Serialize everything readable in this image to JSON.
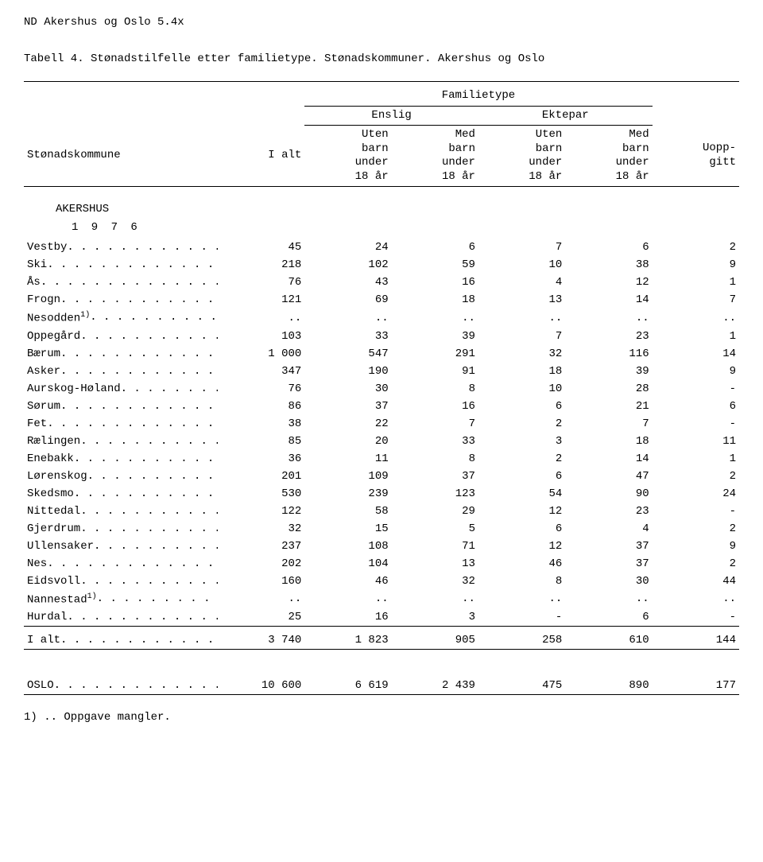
{
  "header_line": "ND  Akershus og Oslo  5.4x",
  "table_title": "Tabell 4.  Stønadstilfelle etter familietype.  Stønadskommuner.  Akershus og Oslo",
  "col_headers": {
    "stub": "Stønadskommune",
    "ialt": "I alt",
    "famtype": "Familietype",
    "enslig": "Enslig",
    "ektepar": "Ektepar",
    "uten": "Uten\nbarn\nunder\n18 år",
    "med": "Med\nbarn\nunder\n18 år",
    "uopp": "Uopp-\ngitt"
  },
  "section": "AKERSHUS",
  "year": "1 9 7 6",
  "rows": [
    {
      "label": "Vestby",
      "v": [
        "45",
        "24",
        "6",
        "7",
        "6",
        "2"
      ]
    },
    {
      "label": "Ski",
      "v": [
        "218",
        "102",
        "59",
        "10",
        "38",
        "9"
      ]
    },
    {
      "label": "Ås",
      "v": [
        "76",
        "43",
        "16",
        "4",
        "12",
        "1"
      ]
    },
    {
      "label": "Frogn",
      "v": [
        "121",
        "69",
        "18",
        "13",
        "14",
        "7"
      ]
    },
    {
      "label": "Nesodden",
      "sup": "1)",
      "v": [
        "..",
        "..",
        "..",
        "..",
        "..",
        ".."
      ]
    },
    {
      "label": "Oppegård",
      "v": [
        "103",
        "33",
        "39",
        "7",
        "23",
        "1"
      ]
    },
    {
      "label": "Bærum",
      "v": [
        "1 000",
        "547",
        "291",
        "32",
        "116",
        "14"
      ]
    },
    {
      "label": "Asker",
      "v": [
        "347",
        "190",
        "91",
        "18",
        "39",
        "9"
      ]
    },
    {
      "label": "Aurskog-Høland",
      "v": [
        "76",
        "30",
        "8",
        "10",
        "28",
        "-"
      ]
    },
    {
      "label": "Sørum",
      "v": [
        "86",
        "37",
        "16",
        "6",
        "21",
        "6"
      ]
    },
    {
      "label": "Fet",
      "v": [
        "38",
        "22",
        "7",
        "2",
        "7",
        "-"
      ]
    },
    {
      "label": "Rælingen",
      "v": [
        "85",
        "20",
        "33",
        "3",
        "18",
        "11"
      ]
    },
    {
      "label": "Enebakk",
      "v": [
        "36",
        "11",
        "8",
        "2",
        "14",
        "1"
      ]
    },
    {
      "label": "Lørenskog",
      "v": [
        "201",
        "109",
        "37",
        "6",
        "47",
        "2"
      ]
    },
    {
      "label": "Skedsmo",
      "v": [
        "530",
        "239",
        "123",
        "54",
        "90",
        "24"
      ]
    },
    {
      "label": "Nittedal",
      "v": [
        "122",
        "58",
        "29",
        "12",
        "23",
        "-"
      ]
    },
    {
      "label": "Gjerdrum",
      "v": [
        "32",
        "15",
        "5",
        "6",
        "4",
        "2"
      ]
    },
    {
      "label": "Ullensaker",
      "v": [
        "237",
        "108",
        "71",
        "12",
        "37",
        "9"
      ]
    },
    {
      "label": "Nes",
      "v": [
        "202",
        "104",
        "13",
        "46",
        "37",
        "2"
      ]
    },
    {
      "label": "Eidsvoll",
      "v": [
        "160",
        "46",
        "32",
        "8",
        "30",
        "44"
      ]
    },
    {
      "label": "Nannestad",
      "sup": "1)",
      "v": [
        "..",
        "..",
        "..",
        "..",
        "..",
        ".."
      ]
    },
    {
      "label": "Hurdal",
      "v": [
        "25",
        "16",
        "3",
        "-",
        "6",
        "-"
      ]
    }
  ],
  "total": {
    "label": "I alt",
    "v": [
      "3 740",
      "1 823",
      "905",
      "258",
      "610",
      "144"
    ]
  },
  "oslo": {
    "label": "OSLO",
    "v": [
      "10 600",
      "6 619",
      "2 439",
      "475",
      "890",
      "177"
    ]
  },
  "footnote": "1) .. Oppgave mangler."
}
